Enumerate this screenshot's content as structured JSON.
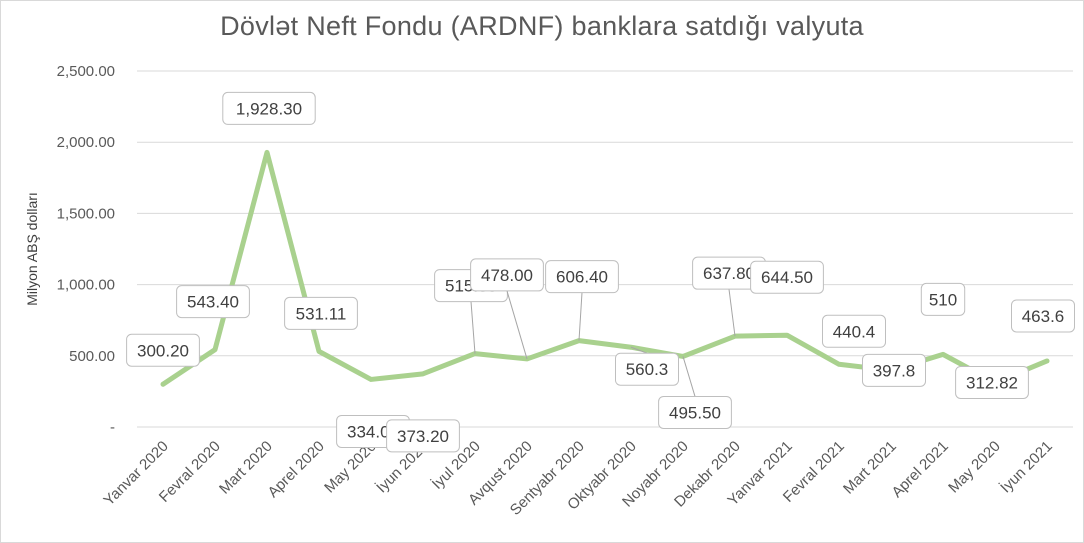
{
  "chart_data": {
    "type": "line",
    "title": "Dövlət Neft Fondu (ARDNF) banklara satdığı valyuta",
    "xlabel": "",
    "ylabel": "Milyon ABŞ dolları",
    "ylim": [
      0,
      2500
    ],
    "yticks": [
      "-",
      "500.00",
      "1,000.00",
      "1,500.00",
      "2,000.00",
      "2,500.00"
    ],
    "grid": true,
    "legend": "none",
    "line_color": "#a9d18e",
    "categories": [
      "Yanvar 2020",
      "Fevral  2020",
      "Mart  2020",
      "Aprel  2020",
      "May  2020",
      "İyun  2020",
      "İyul  2020",
      "Avqust  2020",
      "Sentyabr  2020",
      "Oktyabr  2020",
      "Noyabr 2020",
      "Dekabr  2020",
      "Yanvar 2021",
      "Fevral  2021",
      "Mart  2021",
      "Aprel  2021",
      "May 2020",
      "İyun  2021"
    ],
    "values": [
      300.2,
      543.4,
      1928.3,
      531.11,
      334.0,
      373.2,
      515.5,
      478.0,
      606.4,
      560.3,
      495.5,
      637.8,
      644.5,
      440.4,
      397.8,
      510,
      312.82,
      463.6
    ],
    "data_labels": [
      "300.20",
      "543.40",
      "1,928.30",
      "531.11",
      "334.00",
      "373.20",
      "515.50",
      "478.00",
      "606.40",
      "560.3",
      "495.50",
      "637.80",
      "644.50",
      "440.4",
      "397.8",
      "510",
      "312.82",
      "463.6"
    ]
  }
}
